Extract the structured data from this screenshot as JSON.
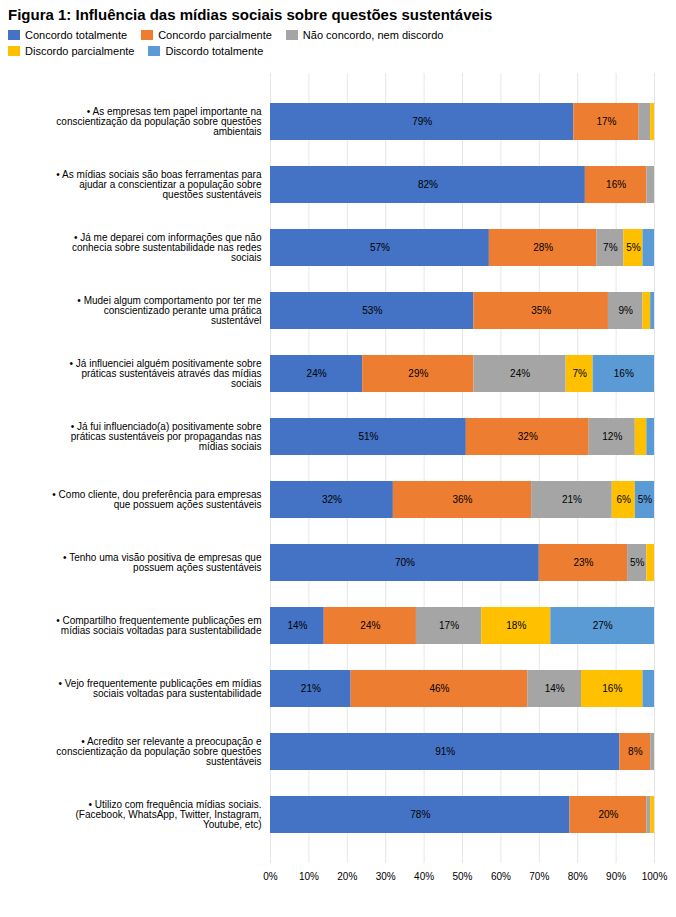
{
  "chart_data": {
    "type": "bar",
    "orientation": "horizontal",
    "stacked": true,
    "title": "Figura 1: Influência das mídias sociais sobre questões sustentáveis",
    "categories": [
      "• As empresas tem papel importante na\nconscientização da população sobre questões\nambientais",
      "• As mídias sociais são boas ferramentas para\najudar a conscientizar a população sobre\nquestões sustentáveis",
      "• Já me deparei com informações que não\nconhecia sobre sustentabilidade nas redes\nsociais",
      "• Mudei algum comportamento por ter me\nconscientizado perante uma prática\nsustentável",
      "• Já influenciei alguém positivamente sobre\npráticas sustentáveis através das mídias\nsociais",
      "• Já fui influenciado(a) positivamente sobre\npráticas sustentáveis por propagandas nas\nmídias sociais",
      "• Como cliente, dou preferência para empresas\nque possuem ações sustentáveis",
      "• Tenho uma visão positiva de empresas que\npossuem ações sustentáveis",
      "• Compartilho frequentemente publicações em\nmídias sociais voltadas para sustentabilidade",
      "• Vejo frequentemente publicações em mídias\nsociais voltadas para sustentabilidade",
      "• Acredito ser relevante a preocupação e\nconscientização da população sobre questões\nsustentáveis",
      "• Utilizo com frequência mídias sociais.\n(Facebook, WhatsApp, Twitter, Instagram,\nYoutube, etc)"
    ],
    "series": [
      {
        "name": "Concordo totalmente",
        "color": "#4472C4",
        "values": [
          79,
          82,
          57,
          53,
          24,
          51,
          32,
          70,
          14,
          21,
          91,
          78
        ],
        "value_labels": [
          "79%",
          "82%",
          "57%",
          "53%",
          "24%",
          "51%",
          "32%",
          "70%",
          "14%",
          "21%",
          "91%",
          "78%"
        ]
      },
      {
        "name": "Concordo parcialmente",
        "color": "#ED7D31",
        "values": [
          17,
          16,
          28,
          35,
          29,
          32,
          36,
          23,
          24,
          46,
          8,
          20
        ],
        "value_labels": [
          "17%",
          "16%",
          "28%",
          "35%",
          "29%",
          "32%",
          "36%",
          "23%",
          "24%",
          "46%",
          "8%",
          "20%"
        ]
      },
      {
        "name": "Não concordo, nem discordo",
        "color": "#A5A5A5",
        "values": [
          3,
          2,
          7,
          9,
          24,
          12,
          21,
          5,
          17,
          14,
          1,
          1
        ],
        "value_labels": [
          null,
          null,
          "7%",
          "9%",
          "24%",
          "12%",
          "21%",
          "5%",
          "17%",
          "14%",
          null,
          null
        ]
      },
      {
        "name": "Discordo parcialmente",
        "color": "#FFC000",
        "values": [
          1,
          0,
          5,
          2,
          7,
          3,
          6,
          2,
          18,
          16,
          0,
          1
        ],
        "value_labels": [
          null,
          null,
          "5%",
          null,
          "7%",
          null,
          "6%",
          null,
          "18%",
          "16%",
          null,
          null
        ]
      },
      {
        "name": "Discordo totalmente",
        "color": "#5B9BD5",
        "values": [
          0,
          0,
          3,
          1,
          16,
          2,
          5,
          0,
          27,
          3,
          0,
          0
        ],
        "value_labels": [
          null,
          null,
          null,
          null,
          "16%",
          null,
          "5%",
          null,
          "27%",
          null,
          null,
          null
        ]
      }
    ],
    "xlim": [
      0,
      100
    ],
    "xticks": [
      {
        "value": 0,
        "label": "0%"
      },
      {
        "value": 10,
        "label": "10%"
      },
      {
        "value": 20,
        "label": "20%"
      },
      {
        "value": 30,
        "label": "30%"
      },
      {
        "value": 40,
        "label": "40%"
      },
      {
        "value": 50,
        "label": "50%"
      },
      {
        "value": 60,
        "label": "60%"
      },
      {
        "value": 70,
        "label": "70%"
      },
      {
        "value": 80,
        "label": "80%"
      },
      {
        "value": 90,
        "label": "90%"
      },
      {
        "value": 100,
        "label": "100%"
      }
    ],
    "grid": true,
    "data_labels": true,
    "legend": "top"
  }
}
